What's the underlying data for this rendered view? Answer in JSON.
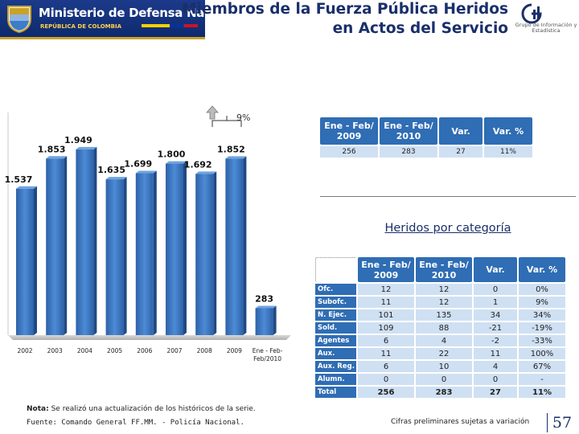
{
  "header": {
    "ministry": "Ministerio de Defensa Nacional",
    "country": "REPÚBLICA DE COLOMBIA",
    "title_line1": "Miembros de la Fuerza Pública Heridos",
    "title_line2": "en Actos del Servicio",
    "unit": "Grupo de Información y Estadística"
  },
  "chart_data": {
    "type": "bar",
    "categories": [
      "2002",
      "2003",
      "2004",
      "2005",
      "2006",
      "2007",
      "2008",
      "2009",
      "Ene - Feb/2010"
    ],
    "values": [
      1537,
      1853,
      1949,
      1635,
      1699,
      1800,
      1692,
      1852,
      283
    ],
    "value_labels": [
      "1.537",
      "1.853",
      "1.949",
      "1.635",
      "1.699",
      "1.800",
      "1.692",
      "1.852",
      "283"
    ],
    "ylim": [
      0,
      2100
    ],
    "grid": false,
    "annotation": "9%",
    "bar_color": "#3c7dc8"
  },
  "summary_table": {
    "headers": [
      "Ene - Feb/ 2009",
      "Ene - Feb/ 2010",
      "Var.",
      "Var. %"
    ],
    "row": [
      "256",
      "283",
      "27",
      "11%"
    ]
  },
  "subtitle": "Heridos por categoría",
  "category_table": {
    "headers": [
      "Ene - Feb/ 2009",
      "Ene - Feb/ 2010",
      "Var.",
      "Var. %"
    ],
    "rows": [
      {
        "cat": "Ofc.",
        "v2009": "12",
        "v2010": "12",
        "var": "0",
        "pct": "0%"
      },
      {
        "cat": "Subofc.",
        "v2009": "11",
        "v2010": "12",
        "var": "1",
        "pct": "9%"
      },
      {
        "cat": "N. Ejec.",
        "v2009": "101",
        "v2010": "135",
        "var": "34",
        "pct": "34%"
      },
      {
        "cat": "Sold.",
        "v2009": "109",
        "v2010": "88",
        "var": "-21",
        "pct": "-19%"
      },
      {
        "cat": "Agentes",
        "v2009": "6",
        "v2010": "4",
        "var": "-2",
        "pct": "-33%"
      },
      {
        "cat": "Aux.",
        "v2009": "11",
        "v2010": "22",
        "var": "11",
        "pct": "100%"
      },
      {
        "cat": "Aux. Reg.",
        "v2009": "6",
        "v2010": "10",
        "var": "4",
        "pct": "67%"
      },
      {
        "cat": "Alumn.",
        "v2009": "0",
        "v2010": "0",
        "var": "0",
        "pct": "-"
      },
      {
        "cat": "Total",
        "v2009": "256",
        "v2010": "283",
        "var": "27",
        "pct": "11%"
      }
    ]
  },
  "footer": {
    "note_label": "Nota:",
    "note_text": "Se realizó una actualización de los históricos de la serie.",
    "source": "Fuente: Comando General FF.MM. - Policía Nacional.",
    "preliminary": "Cifras preliminares sujetas a variación",
    "page": "57"
  }
}
